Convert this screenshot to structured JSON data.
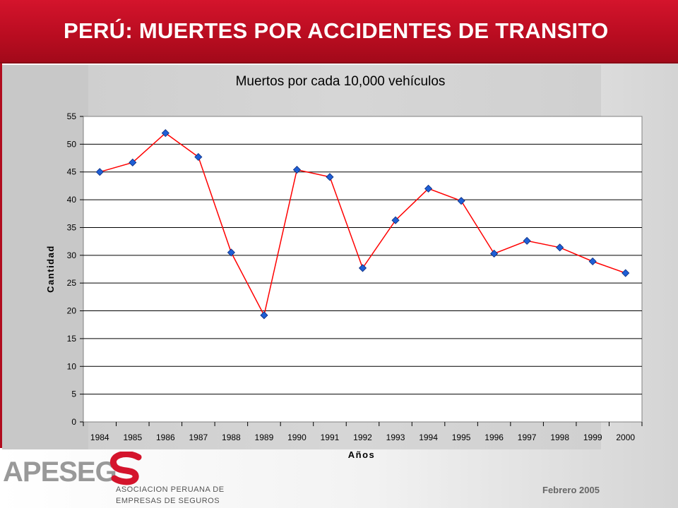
{
  "slide": {
    "title": "PERÚ: MUERTES POR ACCIDENTES DE TRANSITO"
  },
  "footer": {
    "logo_text": "APESEG",
    "org_line1": "ASOCIACION PERUANA DE",
    "org_line2": "EMPRESAS DE SEGUROS",
    "date": "Febrero 2005"
  },
  "colors": {
    "header": "#c4102a",
    "line": "#ff0000",
    "marker": "#1f5fd6",
    "plot_background": "#ffffff"
  },
  "chart_data": {
    "type": "line",
    "title": "Muertos por cada 10,000 vehículos",
    "xlabel": "Años",
    "ylabel": "Cantidad",
    "ylim": [
      0,
      55
    ],
    "yticks": [
      0,
      5,
      10,
      15,
      20,
      25,
      30,
      35,
      40,
      45,
      50,
      55
    ],
    "grid": true,
    "legend": "none",
    "categories": [
      "1984",
      "1985",
      "1986",
      "1987",
      "1988",
      "1989",
      "1990",
      "1991",
      "1992",
      "1993",
      "1994",
      "1995",
      "1996",
      "1997",
      "1998",
      "1999",
      "2000"
    ],
    "series": [
      {
        "values": [
          45.0,
          46.7,
          52.0,
          47.7,
          30.5,
          19.2,
          45.4,
          44.1,
          27.7,
          36.3,
          42.0,
          39.8,
          30.3,
          32.6,
          31.4,
          28.9,
          26.8
        ],
        "marker": "diamond"
      }
    ]
  }
}
